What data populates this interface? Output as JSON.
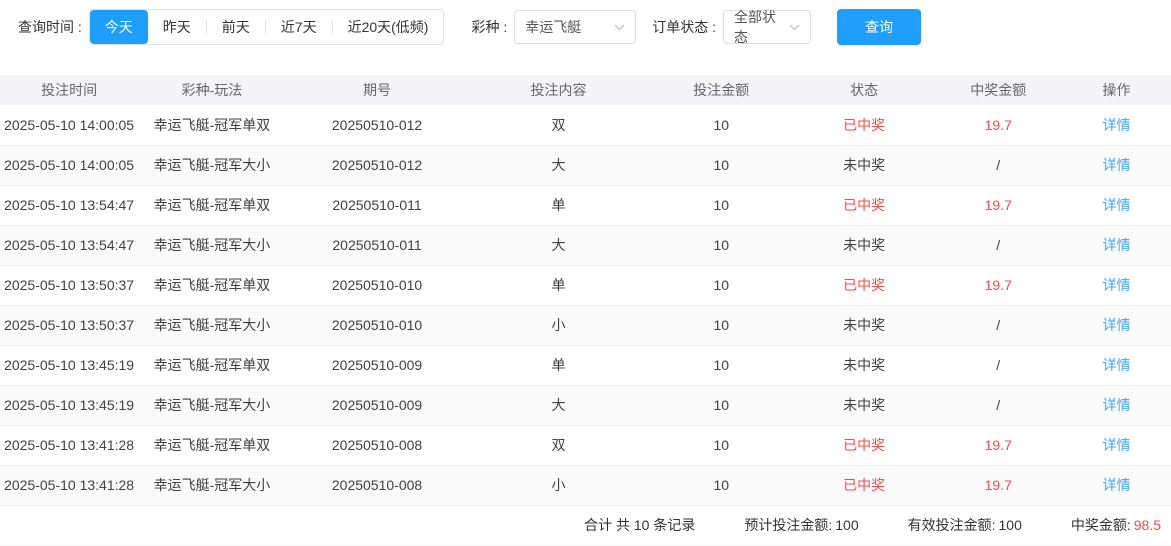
{
  "colors": {
    "accent": "#1e9fff",
    "red": "#ee4e4c",
    "link": "#42a7f3",
    "header_bg": "#f4f4f6"
  },
  "filters": {
    "time_label": "查询时间 :",
    "time_options": [
      {
        "label": "今天",
        "active": true
      },
      {
        "label": "昨天",
        "active": false
      },
      {
        "label": "前天",
        "active": false
      },
      {
        "label": "近7天",
        "active": false
      },
      {
        "label": "近20天(低频)",
        "active": false
      }
    ],
    "lottery_label": "彩种 :",
    "lottery_value": "幸运飞艇",
    "status_label": "订单状态 :",
    "status_value": "全部状态",
    "query_button": "查询"
  },
  "table": {
    "columns": [
      "投注时间",
      "彩种-玩法",
      "期号",
      "投注内容",
      "投注金额",
      "状态",
      "中奖金额",
      "操作"
    ],
    "rows": [
      {
        "time": "2025-05-10 14:00:05",
        "play": "幸运飞艇-冠军单双",
        "issue": "20250510-012",
        "content": "双",
        "amount": "10",
        "status": "已中奖",
        "hit": true,
        "prize": "19.7",
        "action": "详情"
      },
      {
        "time": "2025-05-10 14:00:05",
        "play": "幸运飞艇-冠军大小",
        "issue": "20250510-012",
        "content": "大",
        "amount": "10",
        "status": "未中奖",
        "hit": false,
        "prize": "/",
        "action": "详情"
      },
      {
        "time": "2025-05-10 13:54:47",
        "play": "幸运飞艇-冠军单双",
        "issue": "20250510-011",
        "content": "单",
        "amount": "10",
        "status": "已中奖",
        "hit": true,
        "prize": "19.7",
        "action": "详情"
      },
      {
        "time": "2025-05-10 13:54:47",
        "play": "幸运飞艇-冠军大小",
        "issue": "20250510-011",
        "content": "大",
        "amount": "10",
        "status": "未中奖",
        "hit": false,
        "prize": "/",
        "action": "详情"
      },
      {
        "time": "2025-05-10 13:50:37",
        "play": "幸运飞艇-冠军单双",
        "issue": "20250510-010",
        "content": "单",
        "amount": "10",
        "status": "已中奖",
        "hit": true,
        "prize": "19.7",
        "action": "详情"
      },
      {
        "time": "2025-05-10 13:50:37",
        "play": "幸运飞艇-冠军大小",
        "issue": "20250510-010",
        "content": "小",
        "amount": "10",
        "status": "未中奖",
        "hit": false,
        "prize": "/",
        "action": "详情"
      },
      {
        "time": "2025-05-10 13:45:19",
        "play": "幸运飞艇-冠军单双",
        "issue": "20250510-009",
        "content": "单",
        "amount": "10",
        "status": "未中奖",
        "hit": false,
        "prize": "/",
        "action": "详情"
      },
      {
        "time": "2025-05-10 13:45:19",
        "play": "幸运飞艇-冠军大小",
        "issue": "20250510-009",
        "content": "大",
        "amount": "10",
        "status": "未中奖",
        "hit": false,
        "prize": "/",
        "action": "详情"
      },
      {
        "time": "2025-05-10 13:41:28",
        "play": "幸运飞艇-冠军单双",
        "issue": "20250510-008",
        "content": "双",
        "amount": "10",
        "status": "已中奖",
        "hit": true,
        "prize": "19.7",
        "action": "详情"
      },
      {
        "time": "2025-05-10 13:41:28",
        "play": "幸运飞艇-冠军大小",
        "issue": "20250510-008",
        "content": "小",
        "amount": "10",
        "status": "已中奖",
        "hit": true,
        "prize": "19.7",
        "action": "详情"
      }
    ]
  },
  "summary": {
    "total_text": "合计 共 10 条记录",
    "expected_label": "预计投注金额:",
    "expected_value": "100",
    "valid_label": "有效投注金额:",
    "valid_value": "100",
    "prize_label": "中奖金额:",
    "prize_value": "98.5"
  }
}
